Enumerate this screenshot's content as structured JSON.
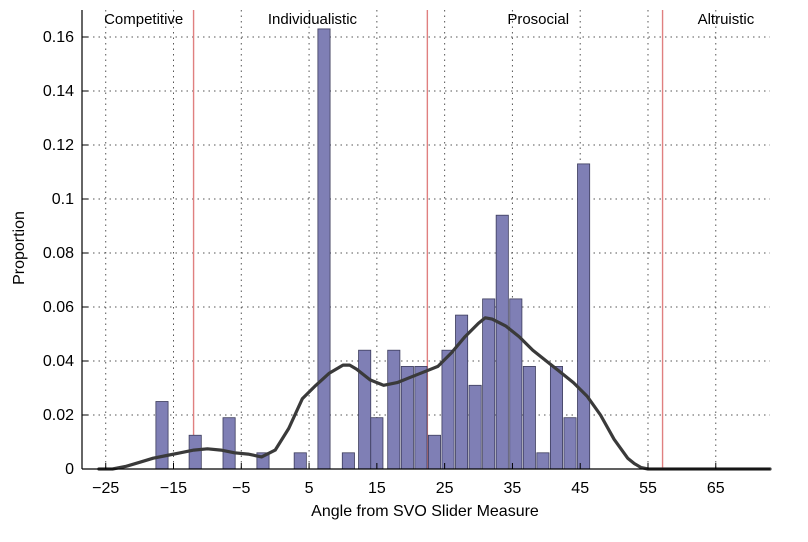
{
  "chart_data": {
    "type": "bar",
    "title": "",
    "xlabel": "Angle from SVO Slider Measure",
    "ylabel": "Proportion",
    "xlim": [
      -28.5,
      73
    ],
    "ylim": [
      0,
      0.17
    ],
    "grid": true,
    "bar_width": 1.8,
    "xticks": [
      -25,
      -15,
      -5,
      5,
      15,
      25,
      35,
      45,
      55,
      65
    ],
    "xtick_labels": [
      "−25",
      "−15",
      "−5",
      "5",
      "15",
      "25",
      "35",
      "45",
      "55",
      "65"
    ],
    "yticks": [
      0,
      0.02,
      0.04,
      0.06,
      0.08,
      0.1,
      0.12,
      0.14,
      0.16
    ],
    "ytick_labels": [
      "0",
      "0.02",
      "0.04",
      "0.06",
      "0.08",
      "0.1",
      "0.12",
      "0.14",
      "0.16"
    ],
    "regions": [
      {
        "label": "Competitive",
        "center": -19.4
      },
      {
        "label": "Individualistic",
        "center": 5.5
      },
      {
        "label": "Prosocial",
        "center": 38.8
      },
      {
        "label": "Altruistic",
        "center": 66.5
      }
    ],
    "boundaries": [
      -12.04,
      22.45,
      57.15
    ],
    "bars": {
      "x": [
        -16.7,
        -11.8,
        -6.8,
        -1.8,
        3.7,
        7.2,
        10.8,
        13.2,
        15.0,
        17.5,
        19.5,
        21.5,
        23.5,
        25.5,
        27.5,
        29.5,
        31.5,
        33.5,
        35.5,
        37.5,
        39.5,
        41.5,
        43.5,
        45.5
      ],
      "values": [
        0.025,
        0.0125,
        0.019,
        0.006,
        0.006,
        0.163,
        0.006,
        0.044,
        0.019,
        0.044,
        0.038,
        0.038,
        0.0125,
        0.044,
        0.057,
        0.031,
        0.063,
        0.094,
        0.063,
        0.038,
        0.006,
        0.038,
        0.019,
        0.113
      ]
    },
    "density": {
      "x": [
        -26,
        -24,
        -22,
        -20,
        -18,
        -16,
        -14,
        -12,
        -10,
        -8,
        -6,
        -4,
        -2,
        0,
        2,
        4,
        6,
        8,
        10,
        11,
        12,
        14,
        16,
        18,
        20,
        22,
        24,
        26,
        28,
        30,
        31,
        32,
        34,
        36,
        38,
        40,
        42,
        44,
        46,
        48,
        50,
        52,
        53,
        54,
        55,
        56,
        58,
        60,
        65,
        70,
        73
      ],
      "y": [
        0,
        0,
        0.001,
        0.0025,
        0.004,
        0.005,
        0.006,
        0.007,
        0.0075,
        0.007,
        0.006,
        0.0055,
        0.0045,
        0.007,
        0.015,
        0.026,
        0.031,
        0.0355,
        0.0385,
        0.0385,
        0.037,
        0.033,
        0.031,
        0.032,
        0.034,
        0.036,
        0.038,
        0.043,
        0.049,
        0.054,
        0.056,
        0.0555,
        0.053,
        0.049,
        0.044,
        0.04,
        0.036,
        0.032,
        0.027,
        0.02,
        0.011,
        0.004,
        0.002,
        0.0005,
        0,
        0,
        0,
        0,
        0,
        0,
        0
      ]
    },
    "colors": {
      "bar_fill": "#7f7fb5",
      "bar_stroke": "#3c3c5c",
      "density_line": "#3a3a3a",
      "boundary_line": "#e08080",
      "grid": "#555555"
    }
  }
}
